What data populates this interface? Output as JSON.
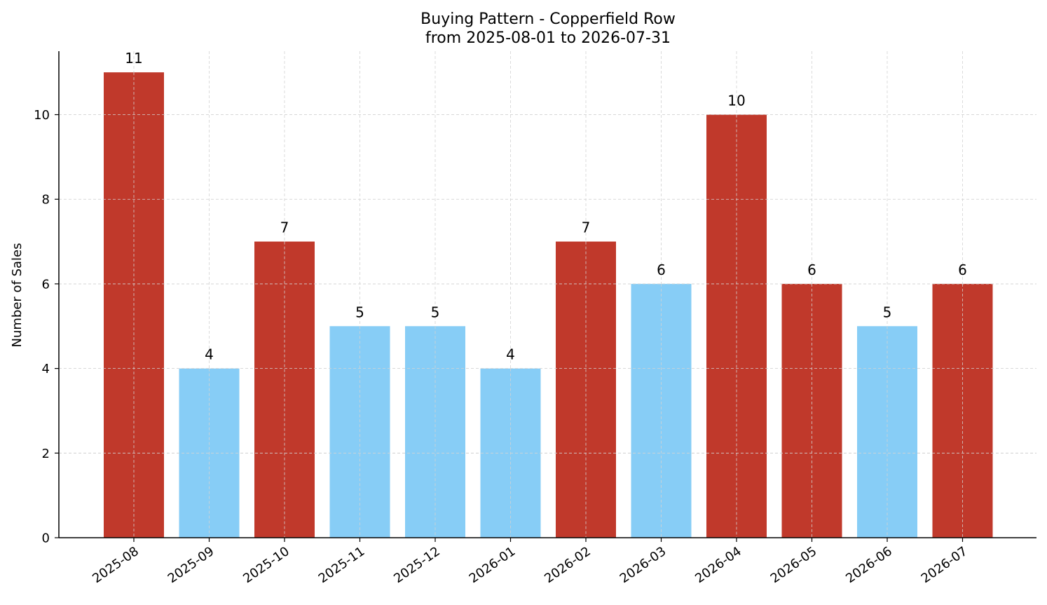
{
  "chart_data": {
    "type": "bar",
    "title_line1": "Buying Pattern - Copperfield Row",
    "title_line2": "from 2025-08-01 to 2026-07-31",
    "xlabel": "",
    "ylabel": "Number of Sales",
    "ylim": [
      0,
      11.5
    ],
    "yticks": [
      0,
      2,
      4,
      6,
      8,
      10
    ],
    "grid": true,
    "categories": [
      "2025-08",
      "2025-09",
      "2025-10",
      "2025-11",
      "2025-12",
      "2026-01",
      "2026-02",
      "2026-03",
      "2026-04",
      "2026-05",
      "2026-06",
      "2026-07"
    ],
    "values": [
      11,
      4,
      7,
      5,
      5,
      4,
      7,
      6,
      10,
      6,
      5,
      6
    ],
    "highlight": [
      true,
      false,
      true,
      false,
      false,
      false,
      true,
      false,
      true,
      true,
      false,
      true
    ],
    "colors": {
      "highlight": "#c0392b",
      "normal": "#87cdf6"
    }
  }
}
